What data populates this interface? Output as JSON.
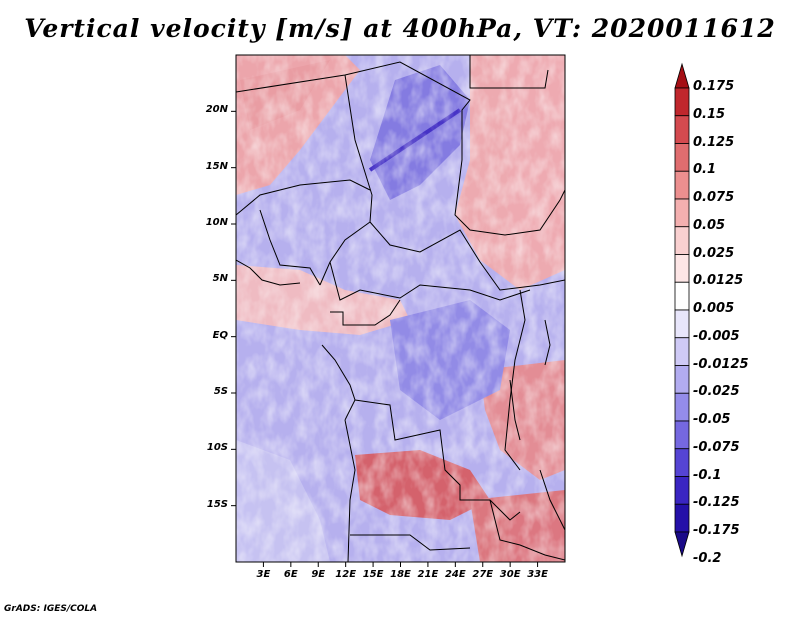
{
  "title": "Vertical velocity [m/s] at 400hPa, VT: 2020011612",
  "credit": "GrADS: IGES/COLA",
  "map": {
    "lon_range": [
      0,
      36
    ],
    "lat_range": [
      -20,
      25
    ],
    "lat_ticks": [
      "20N",
      "15N",
      "10N",
      "5N",
      "EQ",
      "5S",
      "10S",
      "15S"
    ],
    "lat_values": [
      20,
      15,
      10,
      5,
      0,
      -5,
      -10,
      -15
    ],
    "lon_ticks": [
      "3E",
      "6E",
      "9E",
      "12E",
      "15E",
      "18E",
      "21E",
      "24E",
      "27E",
      "30E",
      "33E"
    ],
    "lon_values": [
      3,
      6,
      9,
      12,
      15,
      18,
      21,
      24,
      27,
      30,
      33
    ]
  },
  "colorbar": {
    "labels": [
      "0.175",
      "0.15",
      "0.125",
      "0.1",
      "0.075",
      "0.05",
      "0.025",
      "0.0125",
      "0.005",
      "-0.005",
      "-0.0125",
      "-0.025",
      "-0.05",
      "-0.075",
      "-0.1",
      "-0.125",
      "-0.175",
      "-0.2"
    ],
    "colors": [
      "#a50f15",
      "#c0272d",
      "#d44a4f",
      "#e06d6f",
      "#ec8f8f",
      "#f4b0b0",
      "#f9d0d0",
      "#fde6e6",
      "#ffffff",
      "#e8e6fb",
      "#cfcaf6",
      "#b2acf0",
      "#948cea",
      "#7568e0",
      "#5544d4",
      "#3a25c2",
      "#2410a8",
      "#1a0a88"
    ]
  }
}
